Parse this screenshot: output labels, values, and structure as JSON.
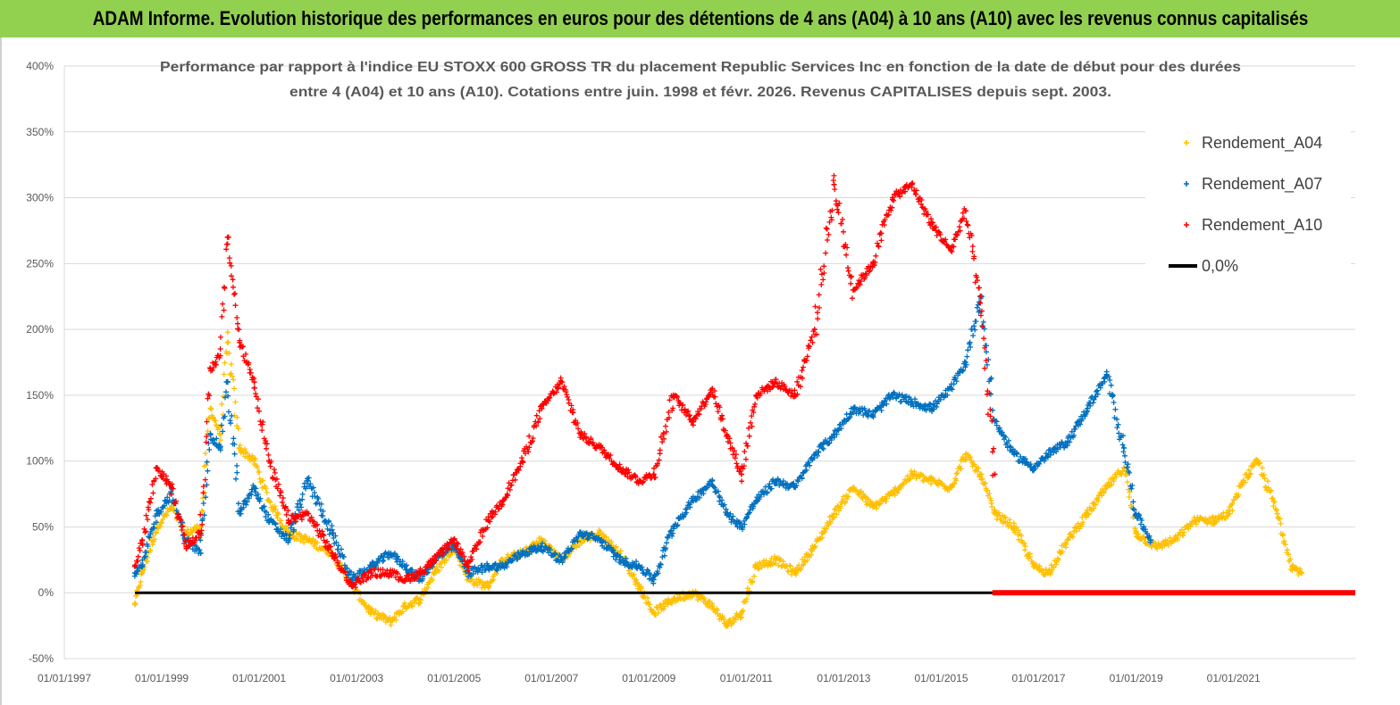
{
  "banner": {
    "title": "ADAM Informe. Evolution historique des performances en euros pour des détentions de 4 ans (A04) à 10 ans (A10) avec les revenus connus capitalisés"
  },
  "colors": {
    "banner_bg": "#92d050",
    "series_A04": "#ffc000",
    "series_A07": "#0070c0",
    "series_A10": "#ff0000",
    "zero_line": "#000000",
    "grid": "#d9d9d9"
  },
  "chart_data": {
    "type": "scatter",
    "title_lines": [
      "Performance par rapport à l'indice EU STOXX 600 GROSS TR  du placement Republic Services Inc en fonction de la date de début pour des durées",
      "entre 4 (A04) et 10 ans (A10).  Cotations entre juin. 1998 et févr. 2026. Revenus CAPITALISES depuis sept. 2003."
    ],
    "x_axis": {
      "type": "date",
      "min": 1997.0,
      "max": 2023.5,
      "tick_values": [
        1997,
        1999,
        2001,
        2003,
        2005,
        2007,
        2009,
        2011,
        2013,
        2015,
        2017,
        2019,
        2021
      ],
      "tick_labels": [
        "01/01/1997",
        "01/01/1999",
        "01/01/2001",
        "01/01/2003",
        "01/01/2005",
        "01/01/2007",
        "01/01/2009",
        "01/01/2011",
        "01/01/2013",
        "01/01/2015",
        "01/01/2017",
        "01/01/2019",
        "01/01/2021"
      ]
    },
    "y_axis": {
      "min": -50,
      "max": 400,
      "tick_values": [
        -50,
        0,
        50,
        100,
        150,
        200,
        250,
        300,
        350,
        400
      ],
      "tick_labels": [
        "-50%",
        "0%",
        "50%",
        "100%",
        "150%",
        "200%",
        "250%",
        "300%",
        "350%",
        "400%"
      ],
      "grid": true
    },
    "legend": {
      "position": "right",
      "entries": [
        "Rendement_A04",
        "Rendement_A07",
        "Rendement_A10",
        "0,0%"
      ]
    },
    "series": [
      {
        "name": "Rendement_A04",
        "x": [
          1998.45,
          1998.6,
          1998.9,
          1999.2,
          1999.5,
          1999.8,
          2000.0,
          2000.2,
          2000.35,
          2000.6,
          2000.9,
          2001.2,
          2001.6,
          2002.0,
          2002.5,
          2002.9,
          2003.3,
          2003.7,
          2004.0,
          2004.3,
          2004.6,
          2005.0,
          2005.3,
          2005.7,
          2006.0,
          2006.4,
          2006.8,
          2007.2,
          2007.6,
          2008.0,
          2008.4,
          2008.8,
          2009.1,
          2009.5,
          2009.9,
          2010.3,
          2010.6,
          2010.9,
          2011.2,
          2011.6,
          2012.0,
          2012.4,
          2012.8,
          2013.2,
          2013.6,
          2014.0,
          2014.4,
          2014.8,
          2015.2,
          2015.5,
          2015.8,
          2016.1,
          2016.5,
          2016.9,
          2017.2,
          2017.6,
          2018.0,
          2018.4,
          2018.75,
          2019.0,
          2019.4,
          2019.8,
          2020.2,
          2020.6,
          2020.9,
          2021.2,
          2021.5,
          2021.9,
          2022.2,
          2022.4
        ],
        "values": [
          -8,
          15,
          50,
          65,
          45,
          50,
          140,
          120,
          190,
          110,
          100,
          70,
          45,
          40,
          30,
          5,
          -15,
          -22,
          -10,
          -5,
          15,
          35,
          10,
          5,
          25,
          30,
          40,
          25,
          40,
          45,
          30,
          5,
          -15,
          -5,
          0,
          -10,
          -25,
          -15,
          20,
          25,
          15,
          35,
          60,
          80,
          65,
          75,
          90,
          85,
          80,
          105,
          90,
          60,
          50,
          20,
          15,
          40,
          60,
          80,
          95,
          45,
          35,
          40,
          55,
          55,
          60,
          85,
          100,
          60,
          20,
          15
        ]
      },
      {
        "name": "Rendement_A07",
        "x": [
          1998.45,
          1998.6,
          1998.9,
          1999.2,
          1999.5,
          1999.8,
          2000.0,
          2000.2,
          2000.35,
          2000.6,
          2000.9,
          2001.2,
          2001.6,
          2002.0,
          2002.5,
          2002.9,
          2003.3,
          2003.7,
          2004.0,
          2004.3,
          2004.6,
          2005.0,
          2005.3,
          2005.7,
          2006.0,
          2006.4,
          2006.8,
          2007.2,
          2007.6,
          2008.0,
          2008.4,
          2008.8,
          2009.1,
          2009.5,
          2009.9,
          2010.3,
          2010.6,
          2010.9,
          2011.2,
          2011.6,
          2012.0,
          2012.4,
          2012.8,
          2013.2,
          2013.6,
          2014.0,
          2014.4,
          2014.8,
          2015.2,
          2015.5,
          2015.8,
          2016.1,
          2016.5,
          2016.9,
          2017.2,
          2017.6,
          2018.0,
          2018.4,
          2018.75,
          2019.0,
          2019.3
        ],
        "values": [
          15,
          20,
          60,
          75,
          40,
          30,
          120,
          110,
          160,
          60,
          80,
          55,
          40,
          85,
          45,
          10,
          20,
          30,
          20,
          10,
          25,
          35,
          15,
          20,
          20,
          30,
          35,
          25,
          45,
          40,
          25,
          20,
          10,
          50,
          70,
          85,
          60,
          50,
          70,
          85,
          80,
          105,
          120,
          140,
          135,
          150,
          145,
          140,
          155,
          175,
          225,
          130,
          105,
          95,
          105,
          115,
          140,
          165,
          110,
          60,
          40
        ]
      },
      {
        "name": "Rendement_A10",
        "x": [
          1998.45,
          1998.6,
          1998.9,
          1999.2,
          1999.5,
          1999.8,
          2000.0,
          2000.2,
          2000.35,
          2000.6,
          2000.9,
          2001.2,
          2001.6,
          2002.0,
          2002.5,
          2002.9,
          2003.3,
          2003.7,
          2004.0,
          2004.3,
          2004.6,
          2005.0,
          2005.3,
          2005.7,
          2006.0,
          2006.4,
          2006.8,
          2007.2,
          2007.6,
          2008.0,
          2008.4,
          2008.8,
          2009.1,
          2009.5,
          2009.9,
          2010.3,
          2010.6,
          2010.9,
          2011.2,
          2011.6,
          2012.0,
          2012.4,
          2012.8,
          2013.2,
          2013.6,
          2014.0,
          2014.4,
          2014.8,
          2015.2,
          2015.5,
          2015.8,
          2016.1
        ],
        "values": [
          20,
          40,
          95,
          80,
          35,
          45,
          170,
          180,
          270,
          190,
          160,
          100,
          55,
          60,
          30,
          5,
          15,
          15,
          10,
          15,
          25,
          40,
          20,
          55,
          70,
          100,
          140,
          160,
          120,
          110,
          95,
          85,
          90,
          150,
          130,
          155,
          120,
          90,
          150,
          160,
          150,
          200,
          310,
          230,
          250,
          300,
          310,
          280,
          260,
          290,
          220,
          90
        ]
      },
      {
        "name": "0,0%",
        "x": [
          1998.45,
          2023.5
        ],
        "values": [
          0,
          0
        ]
      }
    ]
  }
}
